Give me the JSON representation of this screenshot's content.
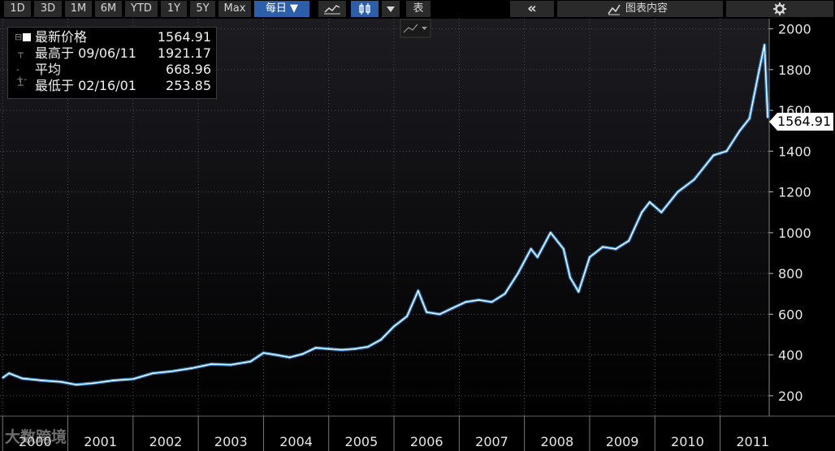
{
  "toolbar": {
    "range_buttons": [
      "1D",
      "3D",
      "1M",
      "6M",
      "YTD",
      "1Y",
      "5Y",
      "Max"
    ],
    "frequency": "每日 ▼",
    "table_label": "表",
    "collapse_label": "«",
    "chart_content_label": "图表内容"
  },
  "legend": {
    "last_price_label": "最新价格",
    "last_price_value": "1564.91",
    "high_label": "最高于 09/06/11",
    "high_value": "1921.17",
    "average_label": "平均",
    "average_value": "668.96",
    "low_label": "最低于 02/16/01",
    "low_value": "253.85"
  },
  "last_price_tag": "1564.91",
  "watermark": "大数跨境",
  "colors": {
    "background": "#000000",
    "line": "#ffffff",
    "line_shadow": "#2f8fe0",
    "grid": "#505050",
    "active_button": "#2d5fa8",
    "button": "#2a2a2a"
  },
  "chart_data": {
    "type": "line",
    "title": "",
    "xlabel": "",
    "ylabel": "",
    "ylim": [
      100,
      2050
    ],
    "y_ticks": [
      200,
      400,
      600,
      800,
      1000,
      1200,
      1400,
      1600,
      1800,
      2000
    ],
    "x_range": [
      1999.96,
      2011.74
    ],
    "x_tick_labels": [
      "2000",
      "2001",
      "2002",
      "2003",
      "2004",
      "2005",
      "2006",
      "2007",
      "2008",
      "2009",
      "2010",
      "2011"
    ],
    "grid": true,
    "series": [
      {
        "x": [
          2000.0,
          2000.1,
          2000.3,
          2000.6,
          2000.9,
          2001.13,
          2001.4,
          2001.7,
          2002.0,
          2002.3,
          2002.6,
          2002.9,
          2003.2,
          2003.5,
          2003.8,
          2004.0,
          2004.2,
          2004.4,
          2004.6,
          2004.8,
          2005.0,
          2005.2,
          2005.4,
          2005.6,
          2005.8,
          2006.0,
          2006.2,
          2006.37,
          2006.5,
          2006.7,
          2006.9,
          2007.1,
          2007.3,
          2007.5,
          2007.7,
          2007.9,
          2008.1,
          2008.2,
          2008.4,
          2008.6,
          2008.7,
          2008.83,
          2009.0,
          2009.2,
          2009.4,
          2009.6,
          2009.8,
          2009.92,
          2010.1,
          2010.35,
          2010.6,
          2010.9,
          2011.1,
          2011.3,
          2011.45,
          2011.6,
          2011.68,
          2011.73
        ],
        "y": [
          288,
          310,
          285,
          275,
          268,
          254,
          262,
          275,
          282,
          310,
          320,
          335,
          355,
          352,
          368,
          410,
          400,
          388,
          405,
          435,
          430,
          425,
          430,
          440,
          475,
          540,
          590,
          715,
          610,
          600,
          630,
          660,
          670,
          660,
          700,
          800,
          920,
          880,
          1000,
          920,
          780,
          710,
          880,
          930,
          920,
          960,
          1100,
          1150,
          1100,
          1200,
          1260,
          1380,
          1400,
          1500,
          1560,
          1800,
          1921,
          1565
        ]
      }
    ]
  }
}
